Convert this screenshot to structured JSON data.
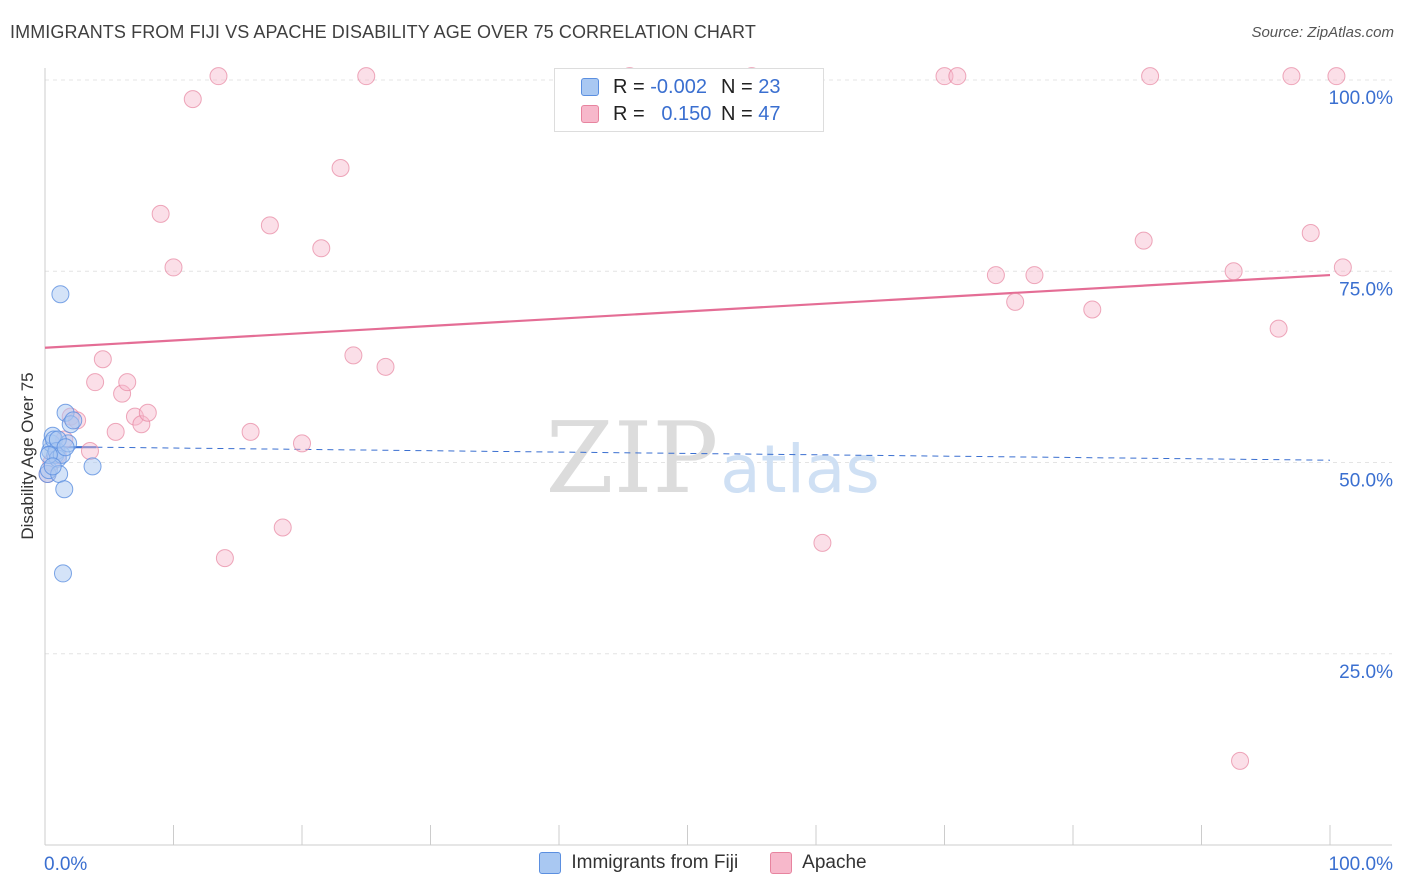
{
  "header": {
    "title": "IMMIGRANTS FROM FIJI VS APACHE DISABILITY AGE OVER 75 CORRELATION CHART",
    "source": "Source: ZipAtlas.com"
  },
  "watermark": {
    "zip": "ZIP",
    "atlas": "atlas"
  },
  "legend": {
    "rows": [
      {
        "r_label": "R =",
        "r_value": "-0.002",
        "n_label": "N =",
        "n_value": "23",
        "color": "#a9c8f2"
      },
      {
        "r_label": "R =",
        "r_value": "0.150",
        "n_label": "N =",
        "n_value": "47",
        "color": "#f7b8cb"
      }
    ]
  },
  "bottom_legend": {
    "series": [
      {
        "label": "Immigrants from Fiji",
        "color": "#a9c8f2"
      },
      {
        "label": "Apache",
        "color": "#f7b8cb"
      }
    ]
  },
  "colors": {
    "fiji_fill": "#a9c8f2",
    "fiji_stroke": "#5b8fe0",
    "fiji_line": "#3a6fd0",
    "apache_fill": "#f7b8cb",
    "apache_stroke": "#e7849f",
    "apache_line": "#e46d95",
    "grid": "#e4e4e4",
    "tick_label": "#3a6fd0"
  },
  "chart_data": {
    "type": "scatter",
    "title": "IMMIGRANTS FROM FIJI VS APACHE DISABILITY AGE OVER 75 CORRELATION CHART",
    "xlabel": "",
    "ylabel": "Disability Age Over 75",
    "xlim": [
      0,
      100
    ],
    "ylim": [
      0,
      100
    ],
    "x_tick_labels": [
      "0.0%",
      "100.0%"
    ],
    "y_tick_labels": [
      "25.0%",
      "50.0%",
      "75.0%",
      "100.0%"
    ],
    "y_ticks": [
      25,
      50,
      75,
      100
    ],
    "grid": true,
    "legend_placement": "top-center",
    "series": [
      {
        "name": "Immigrants from Fiji",
        "x": [
          0.2,
          0.3,
          0.4,
          0.5,
          0.6,
          0.7,
          0.8,
          0.9,
          1.0,
          1.1,
          1.2,
          1.3,
          1.5,
          1.6,
          1.8,
          2.0,
          2.2,
          3.7,
          1.4,
          0.3,
          1.0,
          1.6,
          0.6
        ],
        "y": [
          48.5,
          49.0,
          51.5,
          52.5,
          53.5,
          53.0,
          51.0,
          51.5,
          50.5,
          48.5,
          72.0,
          51.0,
          46.5,
          56.5,
          52.5,
          55.0,
          55.5,
          49.5,
          35.5,
          51.0,
          53.0,
          52.0,
          49.5
        ],
        "trend": {
          "x": [
            0,
            4
          ],
          "y": [
            52.0,
            52.0
          ],
          "extended_x": [
            4,
            100
          ],
          "extended_y": [
            52.0,
            50.3
          ]
        }
      },
      {
        "name": "Apache",
        "x": [
          0.2,
          0.5,
          1.0,
          1.5,
          2.0,
          2.5,
          3.5,
          3.9,
          4.5,
          5.5,
          6.0,
          6.4,
          7.0,
          7.5,
          8.0,
          9.0,
          10.0,
          11.5,
          13.5,
          14.0,
          16.0,
          17.5,
          18.5,
          20.0,
          21.5,
          23.0,
          24.0,
          25.0,
          26.5,
          45.5,
          55.0,
          60.5,
          70.0,
          71.0,
          74.0,
          75.5,
          77.0,
          81.5,
          85.5,
          86.0,
          92.5,
          93.0,
          96.0,
          98.5,
          97.0,
          100.5,
          101.0
        ],
        "y": [
          48.5,
          50.0,
          51.0,
          53.0,
          56.0,
          55.5,
          51.5,
          60.5,
          63.5,
          54.0,
          59.0,
          60.5,
          56.0,
          55.0,
          56.5,
          82.5,
          75.5,
          97.5,
          100.5,
          37.5,
          54.0,
          81.0,
          41.5,
          52.5,
          78.0,
          88.5,
          64.0,
          100.5,
          62.5,
          100.5,
          100.5,
          39.5,
          100.5,
          100.5,
          74.5,
          71.0,
          74.5,
          70.0,
          79.0,
          100.5,
          75.0,
          11.0,
          67.5,
          80.0,
          100.5,
          100.5,
          75.5
        ],
        "trend": {
          "x": [
            0,
            100
          ],
          "y": [
            65.0,
            74.5
          ]
        }
      }
    ]
  }
}
